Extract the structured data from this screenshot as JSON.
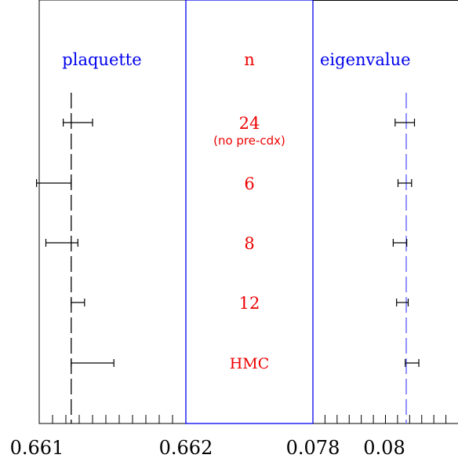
{
  "chart_data": {
    "type": "scatter",
    "colors": {
      "axes": "#000000",
      "blue": "#0000ee",
      "lightblue": "#7777ff",
      "red": "#ee0000"
    },
    "rows": [
      {
        "label": "24",
        "sublabel": "(no pre-cdx)"
      },
      {
        "label": "6",
        "sublabel": ""
      },
      {
        "label": "8",
        "sublabel": ""
      },
      {
        "label": "12",
        "sublabel": ""
      },
      {
        "label": "HMC",
        "sublabel": ""
      }
    ],
    "panels": [
      {
        "title": "plaquette",
        "xlim": [
          0.6609,
          0.662
        ],
        "tick_labels": [
          {
            "value": 0.661,
            "text": "0.661"
          },
          {
            "value": 0.662,
            "text": "0.662"
          }
        ],
        "major_tick_step": 0.0001,
        "reference_line": 0.66114,
        "points": [
          {
            "value": 0.66119,
            "error": 0.00011
          },
          {
            "value": 0.66101,
            "error": 0.00013
          },
          {
            "value": 0.66107,
            "error": 0.00012
          },
          {
            "value": 0.66119,
            "error": 5e-05
          },
          {
            "value": 0.6613,
            "error": 0.00016
          }
        ]
      },
      {
        "title": "n",
        "row_labels": true
      },
      {
        "title": "eigenvalue",
        "xlim": [
          0.078,
          0.081
        ],
        "tick_labels": [
          {
            "value": 0.078,
            "text": "0.078"
          },
          {
            "value": 0.08,
            "text": "0.080"
          }
        ],
        "major_tick_step": 0.00025,
        "reference_line": 0.07993,
        "points": [
          {
            "value": 0.0799,
            "error": 0.0002
          },
          {
            "value": 0.0799,
            "error": 0.00014
          },
          {
            "value": 0.0798,
            "error": 0.00014
          },
          {
            "value": 0.07985,
            "error": 0.00012
          },
          {
            "value": 0.08005,
            "error": 0.00014
          }
        ]
      }
    ]
  }
}
